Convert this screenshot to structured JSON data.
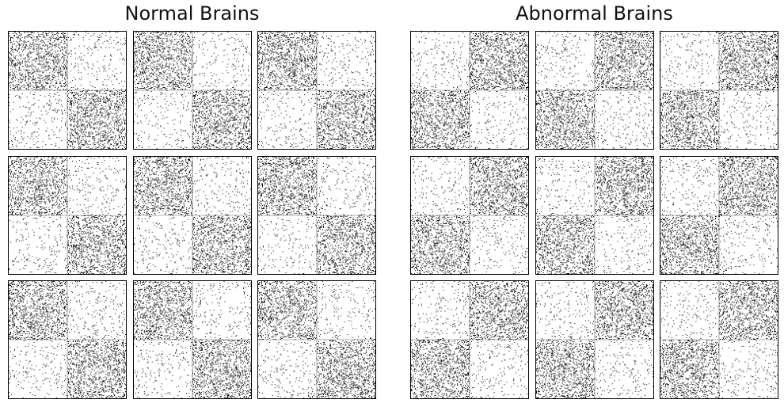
{
  "chart_data": {
    "type": "scatter",
    "figure": "sparse adjacency matrices with two-block community structure",
    "groups": [
      {
        "title": "Normal Brains",
        "pattern": "dense top-left and bottom-right blocks",
        "dense_blocks": [
          [
            0,
            0
          ],
          [
            1,
            1
          ]
        ],
        "panel_count": 9,
        "dense_block_fill": 0.19,
        "sparse_block_fill": 0.035
      },
      {
        "title": "Abnormal Brains",
        "pattern": "dense top-right and bottom-left blocks",
        "dense_blocks": [
          [
            0,
            1
          ],
          [
            1,
            0
          ]
        ],
        "panel_count": 9,
        "dense_block_fill": 0.19,
        "sparse_block_fill": 0.035
      }
    ],
    "matrix_size": 150,
    "block_size": 75,
    "point_color": "#000000",
    "divider_color": "#666666",
    "axes_ticks": false,
    "grid": false
  }
}
